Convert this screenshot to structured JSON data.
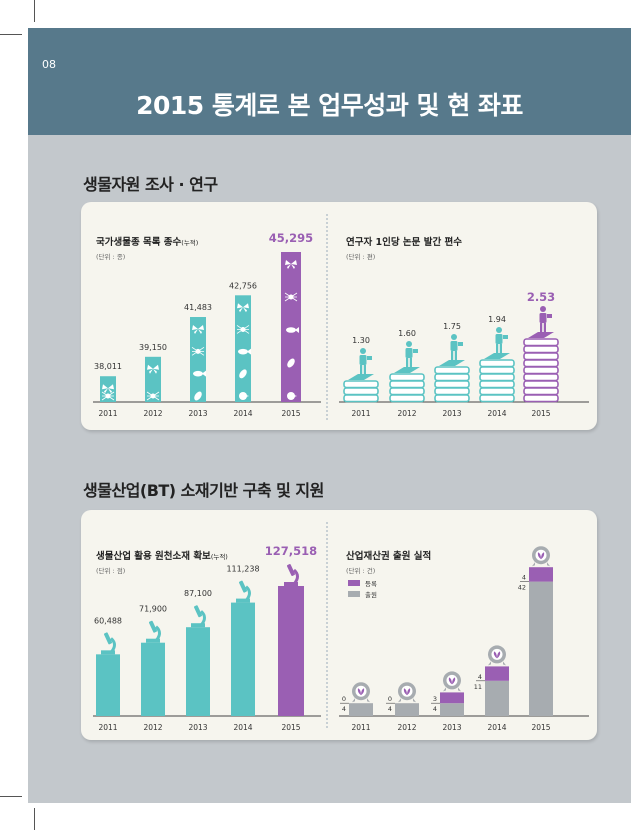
{
  "page": {
    "number": "08",
    "title": "2015 통계로 본 업무성과 및 현 좌표"
  },
  "sections": [
    {
      "title": "생물자원 조사 · 연구"
    },
    {
      "title": "생물산업(BT) 소재기반 구축 및 지원"
    }
  ],
  "colors": {
    "teal": "#5bc3c3",
    "purple": "#9a5fb3",
    "gray": "#a7acb0",
    "header": "#57798b",
    "page_bg": "#c3c8cc",
    "card_bg": "#f6f5ee"
  },
  "chart_data": [
    {
      "type": "bar",
      "title": "국가생물종 목록 종수",
      "title_note": "(누적)",
      "unit": "(단위 : 종)",
      "categories": [
        "2011",
        "2012",
        "2013",
        "2014",
        "2015"
      ],
      "values": [
        38011,
        39150,
        41483,
        42756,
        45295
      ],
      "value_labels": [
        "38,011",
        "39,150",
        "41,483",
        "42,756",
        "45,295"
      ],
      "highlight": "2015",
      "icons": [
        "butterfly-icon",
        "spider-icon",
        "fish-icon",
        "leaf-icon",
        "bird-icon"
      ]
    },
    {
      "type": "bar",
      "title": "연구자 1인당 논문 발간 편수",
      "unit": "(단위 : 편)",
      "categories": [
        "2011",
        "2012",
        "2013",
        "2014",
        "2015"
      ],
      "values": [
        1.3,
        1.6,
        1.75,
        1.94,
        2.53
      ],
      "value_labels": [
        "1.30",
        "1.60",
        "1.75",
        "1.94",
        "2.53"
      ],
      "highlight": "2015",
      "icons": [
        "book-stack-icon",
        "reading-person-icon"
      ]
    },
    {
      "type": "bar",
      "title": "생물산업 활용 원천소재 확보",
      "title_note": "(누적)",
      "unit": "(단위 : 점)",
      "categories": [
        "2011",
        "2012",
        "2013",
        "2014",
        "2015"
      ],
      "values": [
        60488,
        71900,
        87100,
        111238,
        127518
      ],
      "value_labels": [
        "60,488",
        "71,900",
        "87,100",
        "111,238",
        "127,518"
      ],
      "highlight": "2015",
      "icons": [
        "microscope-icon"
      ]
    },
    {
      "type": "bar",
      "title": "산업재산권 출원 실적",
      "unit": "(단위 : 건)",
      "categories": [
        "2011",
        "2012",
        "2013",
        "2014",
        "2015"
      ],
      "series": [
        {
          "name": "등록",
          "values": [
            0,
            0,
            3,
            4,
            4
          ],
          "labels": [
            "0",
            "0",
            "3",
            "4",
            "4"
          ]
        },
        {
          "name": "출원",
          "values": [
            4,
            4,
            4,
            11,
            42
          ],
          "labels": [
            "4",
            "4",
            "4",
            "11",
            "42"
          ]
        }
      ],
      "legend": "top-left",
      "icons": [
        "patent-badge-icon"
      ]
    }
  ]
}
